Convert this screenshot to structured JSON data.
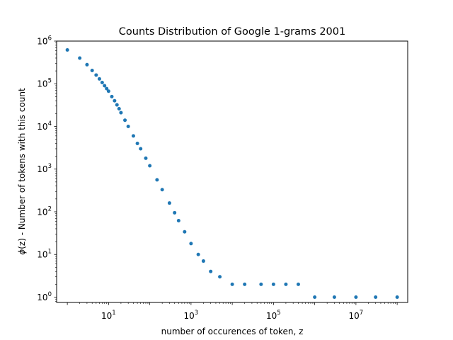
{
  "chart_data": {
    "type": "scatter",
    "title": "Counts Distribution of Google 1-grams 2001",
    "xlabel": "number of occurences of token, z",
    "ylabel_phi": "ϕ",
    "ylabel_z": "(z)",
    "ylabel_rest": " - Number of tokens with this count",
    "x_scale": "log",
    "y_scale": "log",
    "xlim": [
      0.55,
      180000000
    ],
    "ylim": [
      0.75,
      1000000
    ],
    "x_ticks": [
      {
        "value": 10,
        "base": "10",
        "exp": "1"
      },
      {
        "value": 1000,
        "base": "10",
        "exp": "3"
      },
      {
        "value": 100000,
        "base": "10",
        "exp": "5"
      },
      {
        "value": 10000000,
        "base": "10",
        "exp": "7"
      }
    ],
    "y_ticks": [
      {
        "value": 1,
        "base": "10",
        "exp": "0"
      },
      {
        "value": 10,
        "base": "10",
        "exp": "1"
      },
      {
        "value": 100,
        "base": "10",
        "exp": "2"
      },
      {
        "value": 1000,
        "base": "10",
        "exp": "3"
      },
      {
        "value": 10000,
        "base": "10",
        "exp": "4"
      },
      {
        "value": 100000,
        "base": "10",
        "exp": "5"
      },
      {
        "value": 1000000,
        "base": "10",
        "exp": "6"
      }
    ],
    "grid": false,
    "marker_color": "#1f77b4",
    "points": [
      [
        1,
        620000
      ],
      [
        2,
        400000
      ],
      [
        3,
        280000
      ],
      [
        4,
        205000
      ],
      [
        5,
        160000
      ],
      [
        6,
        130000
      ],
      [
        7,
        107000
      ],
      [
        8,
        90000
      ],
      [
        9,
        77000
      ],
      [
        10,
        67000
      ],
      [
        12,
        50000
      ],
      [
        14,
        40000
      ],
      [
        16,
        32000
      ],
      [
        18,
        26000
      ],
      [
        20,
        21000
      ],
      [
        25,
        14000
      ],
      [
        30,
        10000
      ],
      [
        40,
        6000
      ],
      [
        50,
        4000
      ],
      [
        60,
        3000
      ],
      [
        80,
        1800
      ],
      [
        100,
        1200
      ],
      [
        150,
        560
      ],
      [
        200,
        330
      ],
      [
        300,
        160
      ],
      [
        400,
        95
      ],
      [
        500,
        62
      ],
      [
        700,
        34
      ],
      [
        1000,
        18
      ],
      [
        1500,
        10
      ],
      [
        2000,
        7
      ],
      [
        3000,
        4
      ],
      [
        5000,
        3
      ],
      [
        10000,
        2
      ],
      [
        20000,
        2
      ],
      [
        50000,
        2
      ],
      [
        100000,
        2
      ],
      [
        200000,
        2
      ],
      [
        400000,
        2
      ],
      [
        1000000,
        1
      ],
      [
        3000000,
        1
      ],
      [
        10000000,
        1
      ],
      [
        30000000,
        1
      ],
      [
        100000000,
        1
      ]
    ]
  }
}
